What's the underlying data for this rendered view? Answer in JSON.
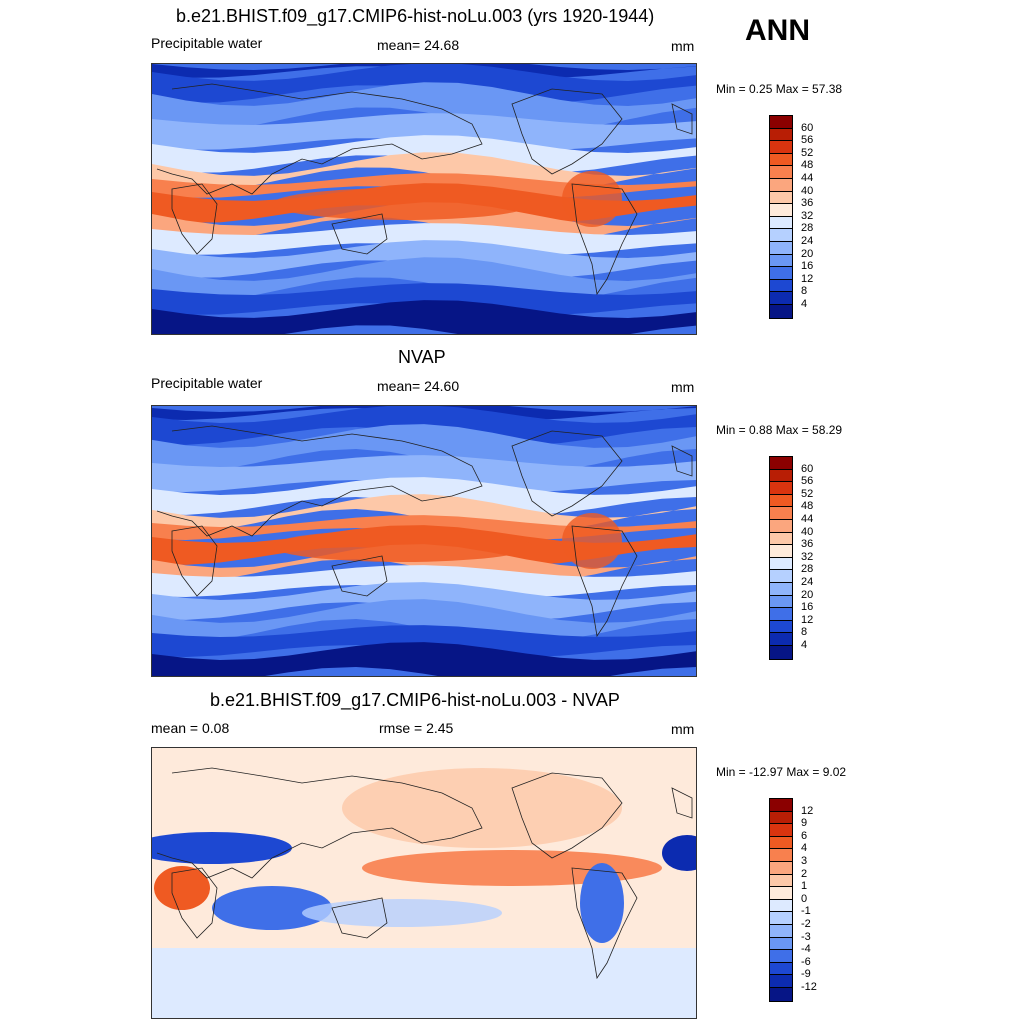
{
  "season": "ANN",
  "panels": [
    {
      "title": "b.e21.BHIST.f09_g17.CMIP6-hist-noLu.003 (yrs 1920-1944)",
      "left_label": "Precipitable water",
      "center_label": "mean=  24.68",
      "units": "mm",
      "minmax": "Min =   0.25 Max =  57.38"
    },
    {
      "title": "NVAP",
      "left_label": "Precipitable water",
      "center_label": "mean=  24.60",
      "units": "mm",
      "minmax": "Min =   0.88 Max =  58.29"
    },
    {
      "title": "b.e21.BHIST.f09_g17.CMIP6-hist-noLu.003 - NVAP",
      "left_label": "mean =   0.08",
      "center_label": "rmse =   2.45",
      "units": "mm",
      "minmax": "Min = -12.97 Max =   9.02"
    }
  ],
  "colorbars": {
    "absolute": {
      "labels": [
        "60",
        "56",
        "52",
        "48",
        "44",
        "40",
        "36",
        "32",
        "28",
        "24",
        "20",
        "16",
        "12",
        "8",
        "4"
      ],
      "colors": [
        "#8b0000",
        "#b81e05",
        "#d9340f",
        "#ef5a22",
        "#f8804e",
        "#fba67e",
        "#fdc8a8",
        "#feeadb",
        "#ddeaff",
        "#b5d0ff",
        "#8fb4fb",
        "#6a97f4",
        "#3f6fe8",
        "#1d48d2",
        "#0c2bb0",
        "#061586"
      ]
    },
    "difference": {
      "labels": [
        "12",
        "9",
        "6",
        "4",
        "3",
        "2",
        "1",
        "0",
        "-1",
        "-2",
        "-3",
        "-4",
        "-6",
        "-9",
        "-12"
      ],
      "colors": [
        "#8b0000",
        "#b81e05",
        "#d9340f",
        "#ef5a22",
        "#f8804e",
        "#fba67e",
        "#fdc8a8",
        "#feeadb",
        "#ddeaff",
        "#b5d0ff",
        "#8fb4fb",
        "#6a97f4",
        "#3f6fe8",
        "#1d48d2",
        "#0c2bb0",
        "#061586"
      ]
    }
  },
  "chart_data": [
    {
      "type": "heatmap",
      "title": "b.e21.BHIST.f09_g17.CMIP6-hist-noLu.003 (yrs 1920-1944)",
      "variable": "Precipitable water",
      "units": "mm",
      "mean": 24.68,
      "min": 0.25,
      "max": 57.38,
      "contour_levels": [
        4,
        8,
        12,
        16,
        20,
        24,
        28,
        32,
        36,
        40,
        44,
        48,
        52,
        56,
        60
      ]
    },
    {
      "type": "heatmap",
      "title": "NVAP",
      "variable": "Precipitable water",
      "units": "mm",
      "mean": 24.6,
      "min": 0.88,
      "max": 58.29,
      "contour_levels": [
        4,
        8,
        12,
        16,
        20,
        24,
        28,
        32,
        36,
        40,
        44,
        48,
        52,
        56,
        60
      ]
    },
    {
      "type": "heatmap",
      "title": "b.e21.BHIST.f09_g17.CMIP6-hist-noLu.003 - NVAP",
      "units": "mm",
      "mean": 0.08,
      "rmse": 2.45,
      "min": -12.97,
      "max": 9.02,
      "contour_levels": [
        -12,
        -9,
        -6,
        -4,
        -3,
        -2,
        -1,
        0,
        1,
        2,
        3,
        4,
        6,
        9,
        12
      ]
    }
  ]
}
